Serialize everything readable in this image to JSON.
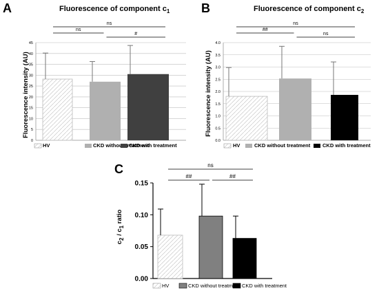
{
  "chart_data": [
    {
      "type": "bar",
      "panel": "A",
      "title_main": "Fluorescence of component c",
      "title_sub": "1",
      "ylabel": "Fluorescence intensity (AU)",
      "ylim": [
        0,
        45
      ],
      "yticks": [
        0,
        5,
        10,
        15,
        20,
        25,
        30,
        35,
        40,
        45
      ],
      "grid": true,
      "categories": [
        "HV",
        "CKD without treatment",
        "CKD with treatment"
      ],
      "values": [
        28.2,
        27.0,
        30.5
      ],
      "errors": [
        12.0,
        9.3,
        13.2
      ],
      "colors": [
        "#ffffff",
        "#b0b0b0",
        "#404040"
      ],
      "hatched": [
        true,
        false,
        false
      ],
      "legend": [
        "HV",
        "CKD without treatment",
        "CKD with treatment"
      ],
      "legend_position": "bottom",
      "significance": [
        {
          "from": 0,
          "to": 2,
          "label": "ns"
        },
        {
          "from": 0,
          "to": 1,
          "label": "ns"
        },
        {
          "from": 1,
          "to": 2,
          "label": "#"
        }
      ]
    },
    {
      "type": "bar",
      "panel": "B",
      "title_main": "Fluorescence of component c",
      "title_sub": "2",
      "ylabel": "Fluorescence intensity (AU)",
      "ylim": [
        0,
        4.0
      ],
      "yticks": [
        "0.0",
        "0.5",
        "1.0",
        "1.5",
        "2.0",
        "2.5",
        "3.0",
        "3.5",
        "4.0"
      ],
      "grid": true,
      "categories": [
        "HV",
        "CKD without treatment",
        "CKD with treatment"
      ],
      "values": [
        1.8,
        2.53,
        1.86
      ],
      "errors": [
        1.18,
        1.32,
        1.35
      ],
      "colors": [
        "#ffffff",
        "#b0b0b0",
        "#000000"
      ],
      "hatched": [
        true,
        false,
        false
      ],
      "legend": [
        "HV",
        "CKD without treatment",
        "CKD with treatment"
      ],
      "legend_position": "bottom",
      "significance": [
        {
          "from": 0,
          "to": 2,
          "label": "ns"
        },
        {
          "from": 0,
          "to": 1,
          "label": "##"
        },
        {
          "from": 1,
          "to": 2,
          "label": "ns"
        }
      ]
    },
    {
      "type": "bar",
      "panel": "C",
      "ylabel_parts": [
        "c",
        "2",
        " / c",
        "1",
        " ratio"
      ],
      "ylim": [
        0,
        0.15
      ],
      "yticks": [
        "0.00",
        "0.05",
        "0.10",
        "0.15"
      ],
      "grid": false,
      "categories": [
        "HV",
        "CKD without treatment",
        "CKD with treatment"
      ],
      "values": [
        0.068,
        0.098,
        0.063
      ],
      "errors": [
        0.041,
        0.05,
        0.035
      ],
      "colors": [
        "#ffffff",
        "#808080",
        "#000000"
      ],
      "hatched": [
        true,
        false,
        false
      ],
      "legend": [
        "HV",
        "CKD without treatment",
        "CKD with treatment"
      ],
      "legend_position": "bottom",
      "significance": [
        {
          "from": 0,
          "to": 2,
          "label": "ns"
        },
        {
          "from": 0,
          "to": 1,
          "label": "##"
        },
        {
          "from": 1,
          "to": 2,
          "label": "##"
        }
      ]
    }
  ]
}
